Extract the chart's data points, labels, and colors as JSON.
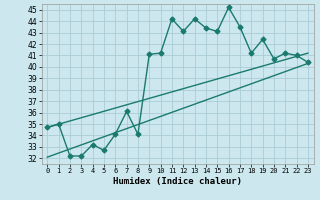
{
  "title": "",
  "xlabel": "Humidex (Indice chaleur)",
  "bg_color": "#cce8ee",
  "grid_color": "#aaccd4",
  "line_color": "#1a7a6e",
  "xlim": [
    -0.5,
    23.5
  ],
  "ylim": [
    31.5,
    45.5
  ],
  "xticks": [
    0,
    1,
    2,
    3,
    4,
    5,
    6,
    7,
    8,
    9,
    10,
    11,
    12,
    13,
    14,
    15,
    16,
    17,
    18,
    19,
    20,
    21,
    22,
    23
  ],
  "yticks": [
    32,
    33,
    34,
    35,
    36,
    37,
    38,
    39,
    40,
    41,
    42,
    43,
    44,
    45
  ],
  "curve1_x": [
    0,
    1,
    2,
    3,
    4,
    5,
    6,
    7,
    8,
    9,
    10,
    11,
    12,
    13,
    14,
    15,
    16,
    17,
    18,
    19,
    20,
    21,
    22,
    23
  ],
  "curve1_y": [
    34.7,
    35.0,
    32.2,
    32.2,
    33.2,
    32.7,
    34.1,
    36.1,
    34.1,
    41.1,
    41.2,
    44.2,
    43.1,
    44.2,
    43.4,
    43.1,
    45.2,
    43.5,
    41.2,
    42.4,
    40.7,
    41.2,
    41.0,
    40.4
  ],
  "curve2_x": [
    0,
    23
  ],
  "curve2_y": [
    34.7,
    41.2
  ],
  "curve3_x": [
    0,
    23
  ],
  "curve3_y": [
    32.1,
    40.3
  ],
  "marker": "D",
  "markersize": 2.5,
  "linewidth": 1.0,
  "tick_fontsize": 5.5,
  "xlabel_fontsize": 6.5
}
